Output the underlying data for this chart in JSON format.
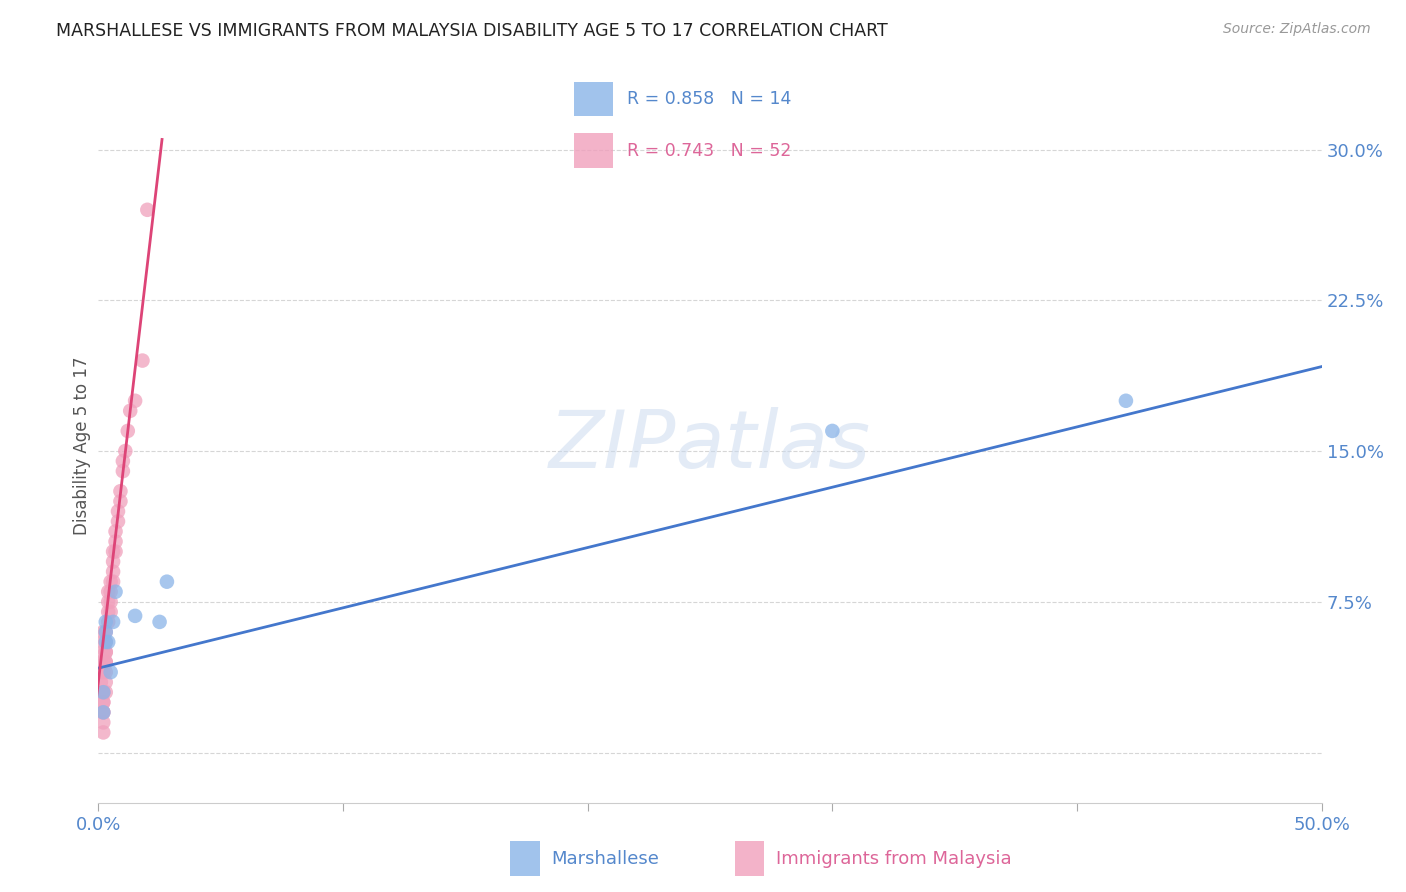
{
  "title": "MARSHALLESE VS IMMIGRANTS FROM MALAYSIA DISABILITY AGE 5 TO 17 CORRELATION CHART",
  "source": "Source: ZipAtlas.com",
  "ylabel": "Disability Age 5 to 17",
  "xlim": [
    0.0,
    0.5
  ],
  "ylim": [
    -0.025,
    0.33
  ],
  "xticks": [
    0.0,
    0.1,
    0.2,
    0.3,
    0.4,
    0.5
  ],
  "xticklabels": [
    "0.0%",
    "",
    "",
    "",
    "",
    "50.0%"
  ],
  "yticks": [
    0.0,
    0.075,
    0.15,
    0.225,
    0.3
  ],
  "yticklabels": [
    "",
    "7.5%",
    "15.0%",
    "22.5%",
    "30.0%"
  ],
  "grid_color": "#cccccc",
  "background_color": "#ffffff",
  "legend_r1": "R = 0.858",
  "legend_n1": "N = 14",
  "legend_r2": "R = 0.743",
  "legend_n2": "N = 52",
  "blue_color": "#8ab4e8",
  "pink_color": "#f0a0bc",
  "blue_line_color": "#4477cc",
  "pink_line_color": "#dd4477",
  "label_blue": "Marshallese",
  "label_pink": "Immigrants from Malaysia",
  "blue_line_x0": 0.0,
  "blue_line_x1": 0.5,
  "blue_line_y0": 0.042,
  "blue_line_y1": 0.192,
  "pink_line_x0": -0.001,
  "pink_line_x1": 0.026,
  "pink_line_y0": 0.025,
  "pink_line_y1": 0.305,
  "marshallese_x": [
    0.002,
    0.002,
    0.003,
    0.003,
    0.003,
    0.004,
    0.005,
    0.006,
    0.007,
    0.015,
    0.025,
    0.028,
    0.3,
    0.42
  ],
  "marshallese_y": [
    0.02,
    0.03,
    0.055,
    0.06,
    0.065,
    0.055,
    0.04,
    0.065,
    0.08,
    0.068,
    0.065,
    0.085,
    0.16,
    0.175
  ],
  "malaysia_x": [
    0.001,
    0.001,
    0.001,
    0.002,
    0.002,
    0.002,
    0.002,
    0.002,
    0.002,
    0.002,
    0.002,
    0.002,
    0.002,
    0.002,
    0.002,
    0.002,
    0.003,
    0.003,
    0.003,
    0.003,
    0.003,
    0.003,
    0.003,
    0.003,
    0.003,
    0.004,
    0.004,
    0.004,
    0.004,
    0.005,
    0.005,
    0.005,
    0.005,
    0.006,
    0.006,
    0.006,
    0.006,
    0.007,
    0.007,
    0.007,
    0.008,
    0.008,
    0.009,
    0.009,
    0.01,
    0.01,
    0.011,
    0.012,
    0.013,
    0.015,
    0.018,
    0.02
  ],
  "malaysia_y": [
    0.035,
    0.04,
    0.045,
    0.04,
    0.045,
    0.05,
    0.055,
    0.06,
    0.03,
    0.025,
    0.02,
    0.015,
    0.01,
    0.025,
    0.03,
    0.02,
    0.06,
    0.055,
    0.05,
    0.045,
    0.04,
    0.035,
    0.045,
    0.05,
    0.03,
    0.065,
    0.07,
    0.075,
    0.08,
    0.08,
    0.085,
    0.075,
    0.07,
    0.09,
    0.085,
    0.095,
    0.1,
    0.1,
    0.11,
    0.105,
    0.115,
    0.12,
    0.125,
    0.13,
    0.14,
    0.145,
    0.15,
    0.16,
    0.17,
    0.175,
    0.195,
    0.27
  ]
}
